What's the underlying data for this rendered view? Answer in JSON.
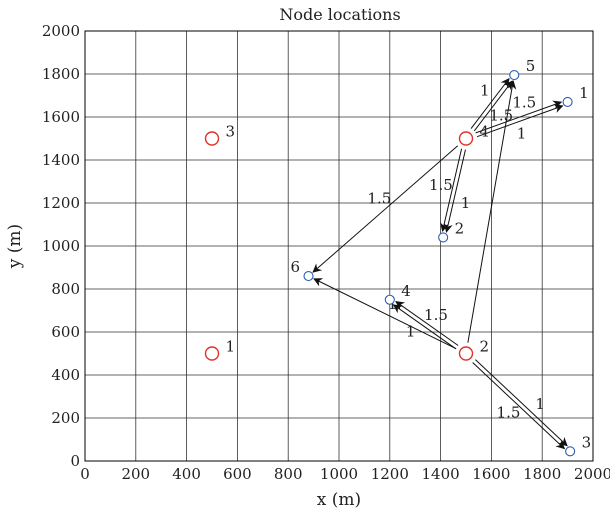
{
  "chart_data": {
    "type": "scatter",
    "title": "Node locations",
    "xlabel": "x (m)",
    "ylabel": "y (m)",
    "xlim": [
      0,
      2000
    ],
    "ylim": [
      0,
      2000
    ],
    "x_ticks": [
      "0",
      "200",
      "400",
      "600",
      "800",
      "1000",
      "1200",
      "1400",
      "1600",
      "1800",
      "2000"
    ],
    "y_ticks": [
      "0",
      "200",
      "400",
      "600",
      "800",
      "1000",
      "1200",
      "1400",
      "1600",
      "1800",
      "2000"
    ],
    "grid": true,
    "series": [
      {
        "points": [
          {
            "label": "1",
            "x": 500,
            "y": 500
          },
          {
            "label": "2",
            "x": 1500,
            "y": 500
          },
          {
            "label": "3",
            "x": 500,
            "y": 1500
          },
          {
            "label": "4",
            "x": 1500,
            "y": 1500
          }
        ],
        "color": "#e0322b",
        "marker": "large-circle"
      },
      {
        "points": [
          {
            "label": "1",
            "x": 1900,
            "y": 1670
          },
          {
            "label": "2",
            "x": 1410,
            "y": 1040
          },
          {
            "label": "3",
            "x": 1910,
            "y": 45
          },
          {
            "label": "4",
            "x": 1200,
            "y": 750
          },
          {
            "label": "5",
            "x": 1690,
            "y": 1795
          },
          {
            "label": "6",
            "x": 880,
            "y": 860
          }
        ],
        "color": "#2a5db0",
        "marker": "small-circle"
      }
    ],
    "links": [
      {
        "from": [
          1500,
          500
        ],
        "to": [
          1910,
          45
        ],
        "labels": [
          "1.5",
          "1"
        ],
        "double": true
      },
      {
        "from": [
          1500,
          500
        ],
        "to": [
          1200,
          750
        ],
        "labels": [
          "1.5",
          "1"
        ],
        "double": true
      },
      {
        "from": [
          1500,
          500
        ],
        "to": [
          880,
          860
        ],
        "labels": [
          "1"
        ],
        "double": false
      },
      {
        "from": [
          1500,
          500
        ],
        "to": [
          1690,
          1795
        ],
        "labels": [],
        "double": false
      },
      {
        "from": [
          1500,
          1500
        ],
        "to": [
          1900,
          1670
        ],
        "labels": [
          "1",
          "1.5"
        ],
        "double": true
      },
      {
        "from": [
          1500,
          1500
        ],
        "to": [
          1690,
          1795
        ],
        "labels": [
          "1.5",
          "1"
        ],
        "double": true
      },
      {
        "from": [
          1500,
          1500
        ],
        "to": [
          1410,
          1040
        ],
        "labels": [
          "1.5",
          "1"
        ],
        "double": true
      },
      {
        "from": [
          1500,
          1500
        ],
        "to": [
          880,
          860
        ],
        "labels": [
          "1.5"
        ],
        "double": false
      }
    ]
  }
}
